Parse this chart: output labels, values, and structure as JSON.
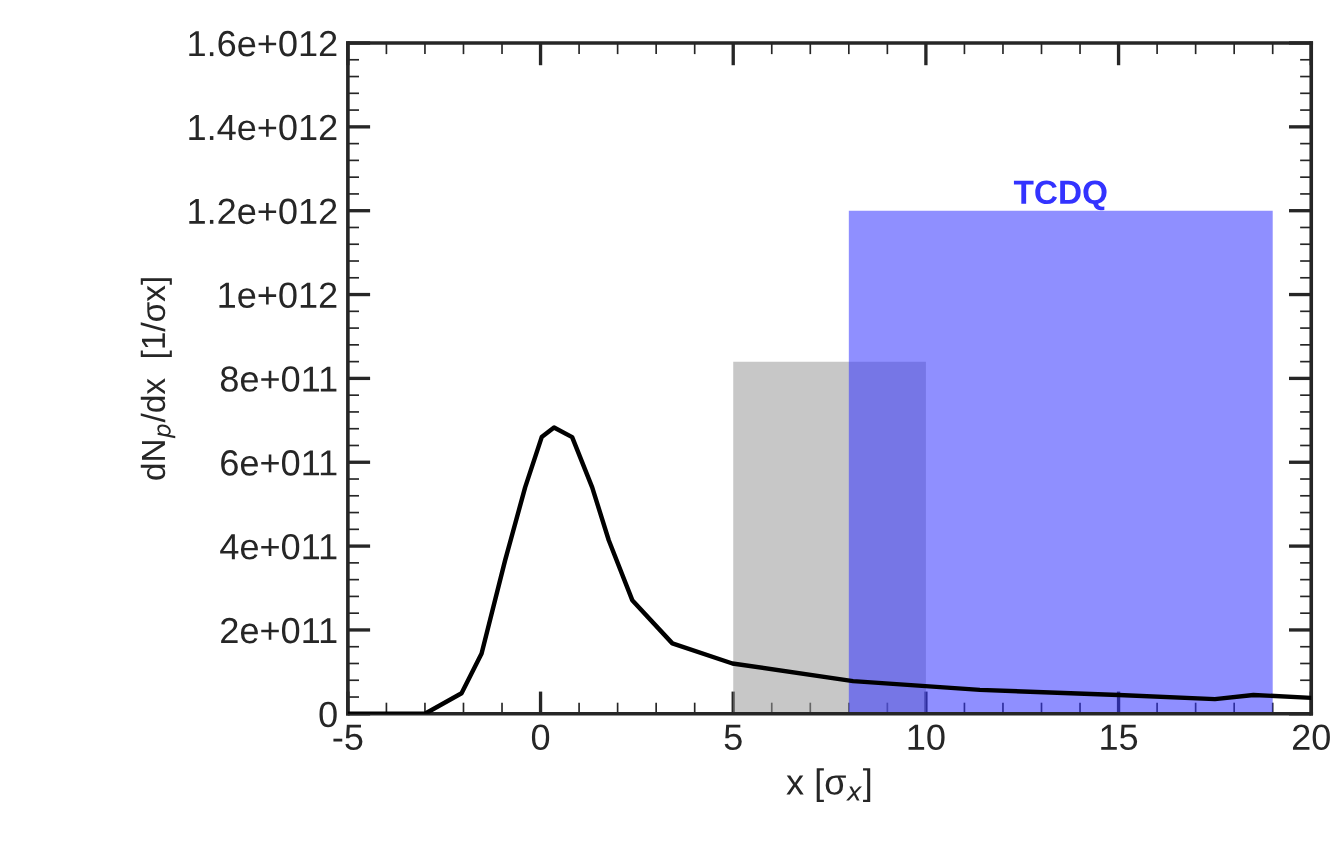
{
  "chart_data": {
    "type": "line",
    "xlabel": "x [σ$_{x}$]",
    "ylabel": "dN$_{p}$/dx  [1/σx]",
    "series": [
      {
        "type": "area",
        "color": "#999999",
        "x": [
          5,
          10
        ],
        "values": [
          840000000000.0,
          840000000000.0
        ]
      },
      {
        "type": "area",
        "name": "TCDQ",
        "color": "#3333ff",
        "x": [
          8,
          19
        ],
        "values": [
          1200000000000.0,
          1200000000000.0
        ]
      },
      {
        "color": "#000000",
        "x": [
          -5,
          -3,
          -2.05,
          -1.53,
          -0.92,
          -0.4,
          0.03,
          0.35,
          0.82,
          1.34,
          1.77,
          2.38,
          3.42,
          4.98,
          8.11,
          11.4,
          15,
          17.5,
          18.5,
          20
        ],
        "values": [
          0,
          0,
          49000000000.0,
          144000000000.0,
          366000000000.0,
          540000000000.0,
          660000000000.0,
          683000000000.0,
          660000000000.0,
          540000000000.0,
          414000000000.0,
          271000000000.0,
          168000000000.0,
          120000000000.0,
          78000000000.0,
          57000000000.0,
          45000000000.0,
          35000000000.0,
          45000000000.0,
          38000000000.0
        ]
      }
    ],
    "xlim": [
      -5,
      20
    ],
    "xticks": [
      -5,
      0,
      5,
      10,
      15,
      20
    ],
    "ylim": [
      0,
      1600000000000.0
    ],
    "yticks": [
      {
        "value": 0,
        "label": "0"
      },
      {
        "value": 200000000000.0,
        "label": "2e+011"
      },
      {
        "value": 400000000000.0,
        "label": "4e+011"
      },
      {
        "value": 600000000000.0,
        "label": "6e+011"
      },
      {
        "value": 800000000000.0,
        "label": "8e+011"
      },
      {
        "value": 1000000000000.0,
        "label": "1e+012"
      },
      {
        "value": 1200000000000.0,
        "label": "1.2e+012"
      },
      {
        "value": 1400000000000.0,
        "label": "1.4e+012"
      },
      {
        "value": 1600000000000.0,
        "label": "1.6e+012"
      }
    ],
    "grid": false,
    "legend": false,
    "marker": "none",
    "line_style": "solid"
  }
}
